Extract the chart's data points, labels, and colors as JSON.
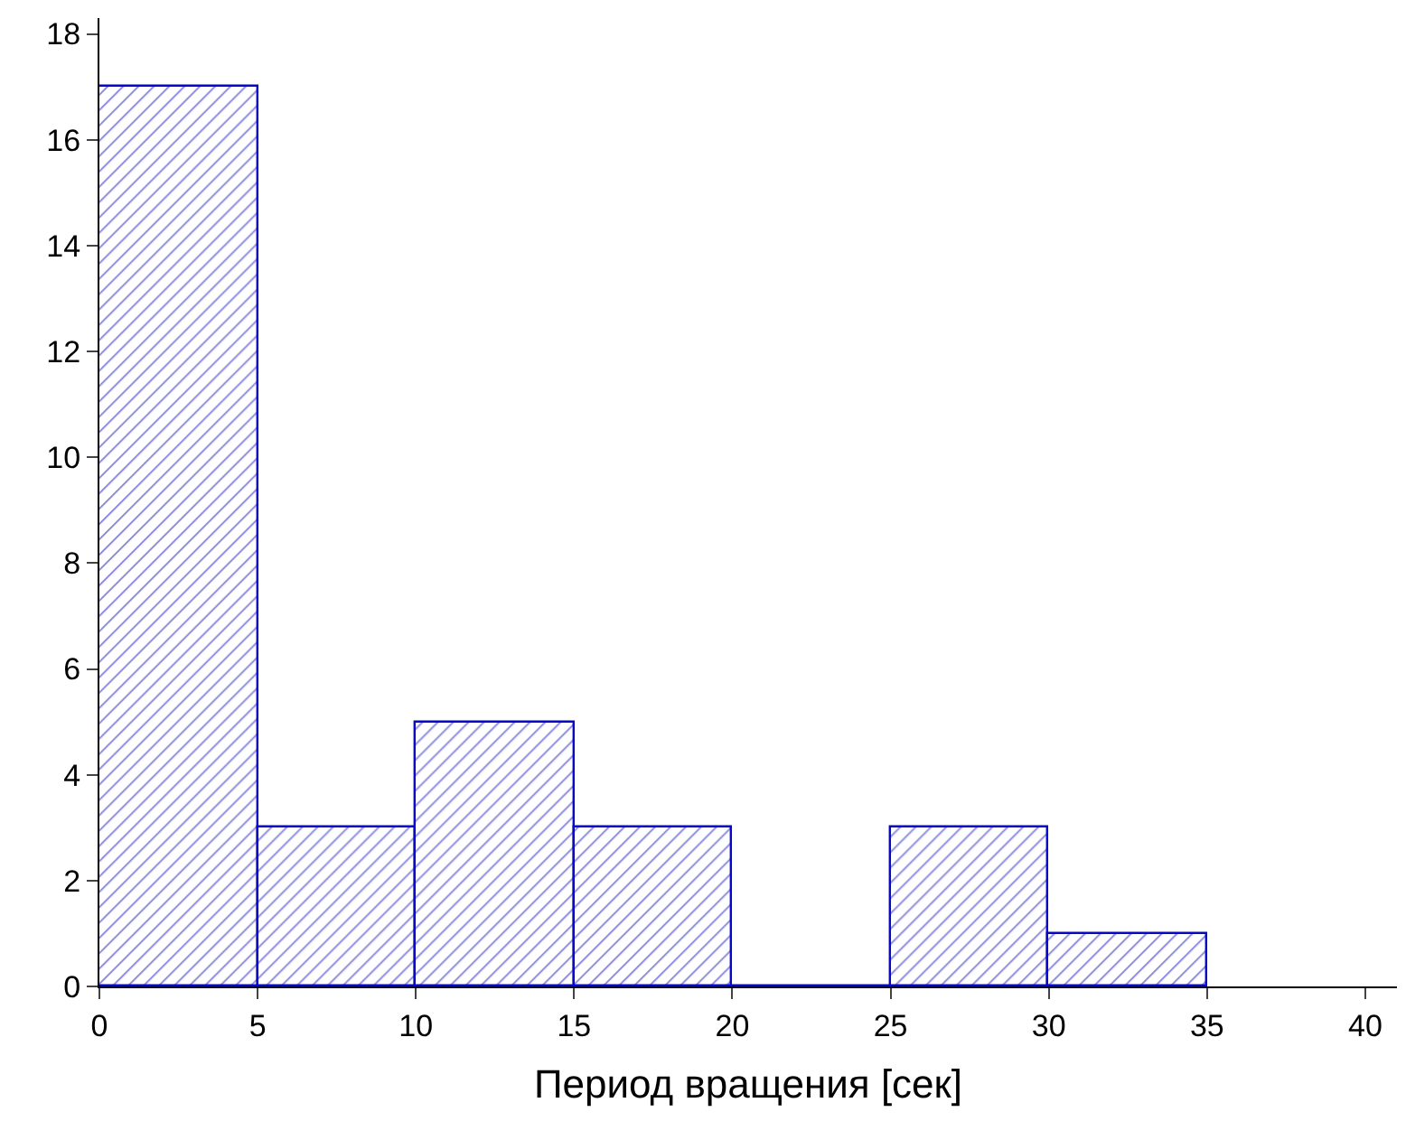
{
  "chart_data": {
    "type": "histogram",
    "xlabel": "Период вращения [сек]",
    "bins": [
      0,
      5,
      10,
      15,
      20,
      25,
      30,
      35
    ],
    "values": [
      17,
      3,
      5,
      3,
      0,
      3,
      1
    ],
    "color": "#0000ff",
    "xlim": [
      0,
      41
    ],
    "xticks": [
      0,
      5,
      10,
      15,
      20,
      25,
      30,
      35,
      40
    ],
    "ylim": [
      0,
      18.3
    ],
    "yticks": [
      0,
      2,
      4,
      6,
      8,
      10,
      12,
      14,
      16,
      18
    ]
  }
}
